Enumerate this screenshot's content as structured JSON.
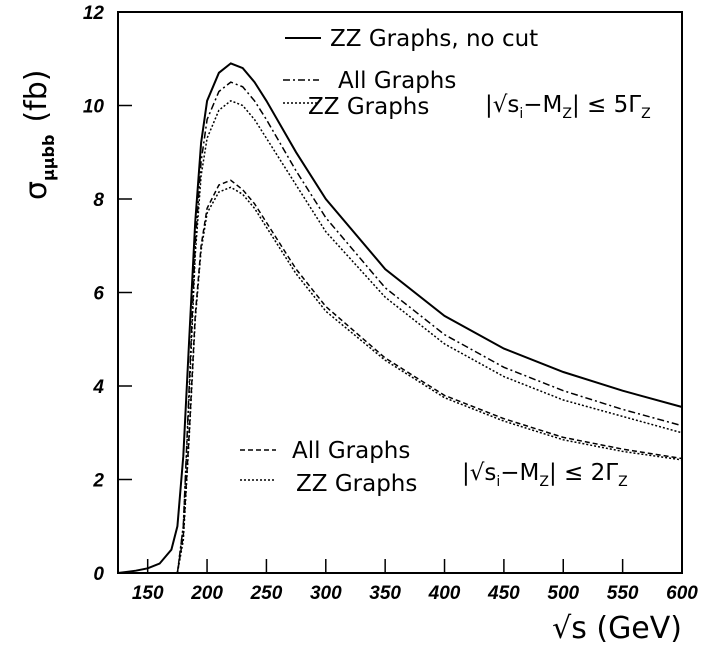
{
  "chart_data": {
    "type": "line",
    "x_label": "√s (GeV)",
    "y_label": {
      "symbol": "σ",
      "subscript": "μμbb",
      "unit": "(fb)"
    },
    "x": [
      125,
      140,
      150,
      160,
      170,
      175,
      180,
      185,
      190,
      195,
      200,
      210,
      220,
      230,
      240,
      250,
      275,
      300,
      350,
      400,
      450,
      500,
      550,
      600
    ],
    "series": [
      {
        "name": "ZZ Graphs, no cut",
        "color": "#000000",
        "style": "solid",
        "values": [
          0.0,
          0.05,
          0.1,
          0.2,
          0.5,
          1.0,
          2.5,
          5.0,
          7.5,
          9.2,
          10.1,
          10.7,
          10.9,
          10.8,
          10.5,
          10.1,
          9.0,
          8.0,
          6.5,
          5.5,
          4.8,
          4.3,
          3.9,
          3.55
        ]
      },
      {
        "name": "All Graphs",
        "color": "#000000",
        "style": "dashdot",
        "values": [
          0,
          0,
          0,
          0,
          0,
          0,
          1.0,
          4.0,
          7.0,
          8.8,
          9.7,
          10.3,
          10.5,
          10.4,
          10.1,
          9.7,
          8.6,
          7.6,
          6.1,
          5.1,
          4.4,
          3.9,
          3.5,
          3.15
        ]
      },
      {
        "name": "ZZ Graphs",
        "color": "#000000",
        "style": "dotted",
        "values": [
          0,
          0,
          0,
          0,
          0,
          0,
          1.0,
          3.8,
          6.8,
          8.5,
          9.3,
          9.9,
          10.1,
          10.0,
          9.7,
          9.3,
          8.3,
          7.3,
          5.9,
          4.9,
          4.2,
          3.7,
          3.35,
          3.0
        ]
      },
      {
        "name": "All Graphs",
        "color": "#000000",
        "style": "dashed",
        "values": [
          0,
          0,
          0,
          0,
          0,
          0,
          0.8,
          3.0,
          5.5,
          7.0,
          7.8,
          8.3,
          8.4,
          8.2,
          7.9,
          7.5,
          6.5,
          5.7,
          4.6,
          3.8,
          3.3,
          2.9,
          2.65,
          2.45
        ]
      },
      {
        "name": "ZZ Graphs",
        "color": "#000000",
        "style": "dotted",
        "values": [
          0,
          0,
          0,
          0,
          0,
          0,
          0.7,
          2.9,
          5.4,
          6.9,
          7.7,
          8.15,
          8.25,
          8.1,
          7.8,
          7.4,
          6.4,
          5.6,
          4.55,
          3.75,
          3.25,
          2.85,
          2.6,
          2.42
        ]
      }
    ],
    "annotations": [
      [
        "|√s",
        "i",
        "−M",
        "Z",
        "| ≤ 5Γ",
        "Z"
      ],
      [
        "|√s",
        "i",
        "−M",
        "Z",
        "| ≤ 2Γ",
        "Z"
      ]
    ],
    "xlim": [
      125,
      600
    ],
    "ylim": [
      0,
      12
    ],
    "xticks": [
      150,
      200,
      250,
      300,
      350,
      400,
      450,
      500,
      550,
      600
    ],
    "yticks": [
      0,
      2,
      4,
      6,
      8,
      10,
      12
    ]
  }
}
